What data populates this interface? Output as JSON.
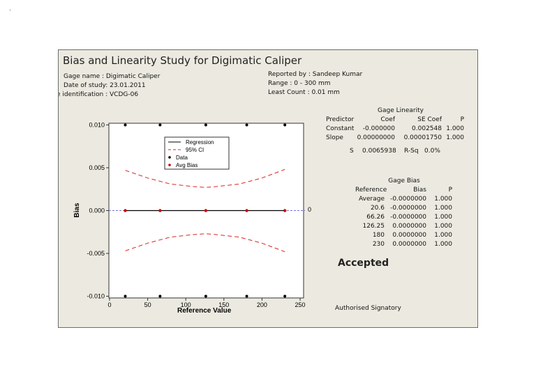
{
  "header": {
    "title": "Bias and Linearity Study for Digimatic Caliper",
    "gage_name": "Gage name : Digimatic Caliper",
    "date_of_study": "Date of study: 23.01.2011",
    "identification": "e identification : VCDG-06",
    "reported_by": "Reported by : Sandeep Kumar",
    "range": "Range : 0 - 300 mm",
    "least_count": "Least Count : 0.01 mm"
  },
  "chart_data": {
    "type": "scatter",
    "xlabel": "Reference Value",
    "ylabel": "Bias",
    "xlim": [
      0,
      250
    ],
    "ylim": [
      -0.0102,
      0.0102
    ],
    "x_ticks": [
      0,
      50,
      100,
      150,
      200,
      250
    ],
    "x_tick_labels": [
      "0",
      "50",
      "100",
      "150",
      "200",
      "250"
    ],
    "y_ticks": [
      0.01,
      0.005,
      0.0,
      -0.005,
      -0.01
    ],
    "y_tick_labels": [
      "0.010",
      "0.005",
      "0.000",
      "-0.005",
      "-0.010"
    ],
    "zero_line_label": "0",
    "legend": {
      "placement": "top-center",
      "entries": [
        "Regression",
        "95% CI",
        "Data",
        "Avg Bias"
      ]
    },
    "series": [
      {
        "name": "Data",
        "x": [
          20.6,
          66.26,
          126.25,
          180,
          230,
          20.6,
          66.26,
          126.25,
          180,
          230
        ],
        "y": [
          0.01,
          0.01,
          0.01,
          0.01,
          0.01,
          -0.01,
          -0.01,
          -0.01,
          -0.01,
          -0.01
        ],
        "color": "#000000"
      },
      {
        "name": "Avg Bias",
        "x": [
          20.6,
          66.26,
          126.25,
          180,
          230
        ],
        "y": [
          0,
          0,
          0,
          0,
          0
        ],
        "color": "#cc0000"
      },
      {
        "name": "Regression",
        "x": [
          20.6,
          230
        ],
        "y": [
          0,
          0
        ],
        "color": "#000000"
      },
      {
        "name": "95% CI",
        "x": [
          20.6,
          50,
          80,
          110,
          126.25,
          140,
          170,
          200,
          230
        ],
        "upper": [
          0.0047,
          0.0038,
          0.0031,
          0.0028,
          0.0027,
          0.0028,
          0.0031,
          0.0038,
          0.0048
        ],
        "lower": [
          -0.0047,
          -0.0038,
          -0.0031,
          -0.0028,
          -0.0027,
          -0.0028,
          -0.0031,
          -0.0038,
          -0.0048
        ],
        "color": "#dd2222"
      }
    ],
    "colors": {
      "zero_reference_line": "#6f6fd8"
    }
  },
  "linearity": {
    "title": "Gage Linearity",
    "headers": [
      "Predictor",
      "Coef",
      "SE Coef",
      "P"
    ],
    "rows": [
      [
        "Constant",
        "-0.000000",
        "0.002548",
        "1.000"
      ],
      [
        "Slope",
        "0.00000000",
        "0.00001750",
        "1.000"
      ]
    ],
    "s_label": "S",
    "s_value": "0.0065938",
    "rsq_label": "R-Sq",
    "rsq_value": "0.0%"
  },
  "bias": {
    "title": "Gage Bias",
    "headers": [
      "Reference",
      "Bias",
      "P"
    ],
    "rows": [
      [
        "Average",
        "-0.0000000",
        "1.000"
      ],
      [
        "20.6",
        "-0.0000000",
        "1.000"
      ],
      [
        "66.26",
        "-0.0000000",
        "1.000"
      ],
      [
        "126.25",
        "0.0000000",
        "1.000"
      ],
      [
        "180",
        "0.0000000",
        "1.000"
      ],
      [
        "230",
        "0.0000000",
        "1.000"
      ]
    ]
  },
  "footer": {
    "status": "Accepted",
    "signature": "Authorised Signatory"
  }
}
